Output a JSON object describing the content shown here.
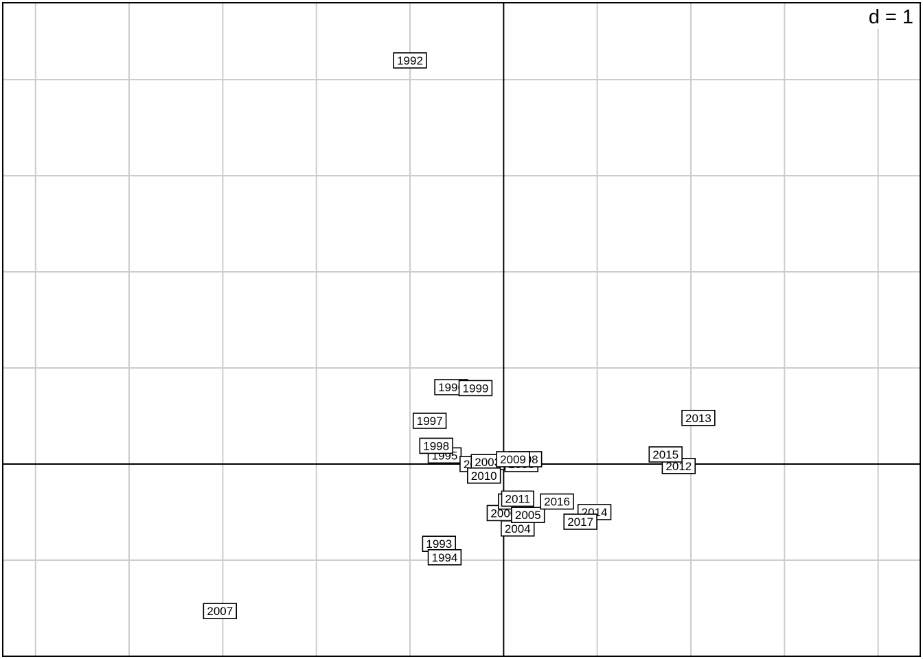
{
  "chart_data": {
    "type": "scatter",
    "scale_label": "d = 1",
    "grid": true,
    "grid_step": 1,
    "xlim": [
      -5.35,
      4.45
    ],
    "ylim": [
      -2.0,
      4.8
    ],
    "points": [
      {
        "label": "1992",
        "x": -1.0,
        "y": 4.2
      },
      {
        "label": "1993",
        "x": -0.69,
        "y": -0.83
      },
      {
        "label": "1994",
        "x": -0.63,
        "y": -0.97
      },
      {
        "label": "1995",
        "x": -0.63,
        "y": 0.09
      },
      {
        "label": "1996",
        "x": -0.56,
        "y": 0.8
      },
      {
        "label": "1997",
        "x": -0.79,
        "y": 0.45
      },
      {
        "label": "1998",
        "x": -0.72,
        "y": 0.19
      },
      {
        "label": "1999",
        "x": -0.3,
        "y": 0.79
      },
      {
        "label": "2000",
        "x": 0.0,
        "y": -0.51
      },
      {
        "label": "2001",
        "x": 0.12,
        "y": -0.39
      },
      {
        "label": "2002",
        "x": -0.29,
        "y": 0.0
      },
      {
        "label": "2003",
        "x": -0.17,
        "y": 0.02
      },
      {
        "label": "2004",
        "x": 0.15,
        "y": -0.67
      },
      {
        "label": "2005",
        "x": 0.26,
        "y": -0.53
      },
      {
        "label": "2006",
        "x": 0.19,
        "y": 0.0
      },
      {
        "label": "2007",
        "x": -3.03,
        "y": -1.53
      },
      {
        "label": "2008",
        "x": 0.23,
        "y": 0.05
      },
      {
        "label": "2009",
        "x": 0.1,
        "y": 0.05
      },
      {
        "label": "2010",
        "x": -0.21,
        "y": -0.12
      },
      {
        "label": "2011",
        "x": 0.15,
        "y": -0.36
      },
      {
        "label": "2012",
        "x": 1.87,
        "y": -0.02
      },
      {
        "label": "2013",
        "x": 2.08,
        "y": 0.48
      },
      {
        "label": "2014",
        "x": 0.97,
        "y": -0.5
      },
      {
        "label": "2015",
        "x": 1.73,
        "y": 0.1
      },
      {
        "label": "2016",
        "x": 0.57,
        "y": -0.39
      },
      {
        "label": "2017",
        "x": 0.82,
        "y": -0.6
      }
    ]
  }
}
